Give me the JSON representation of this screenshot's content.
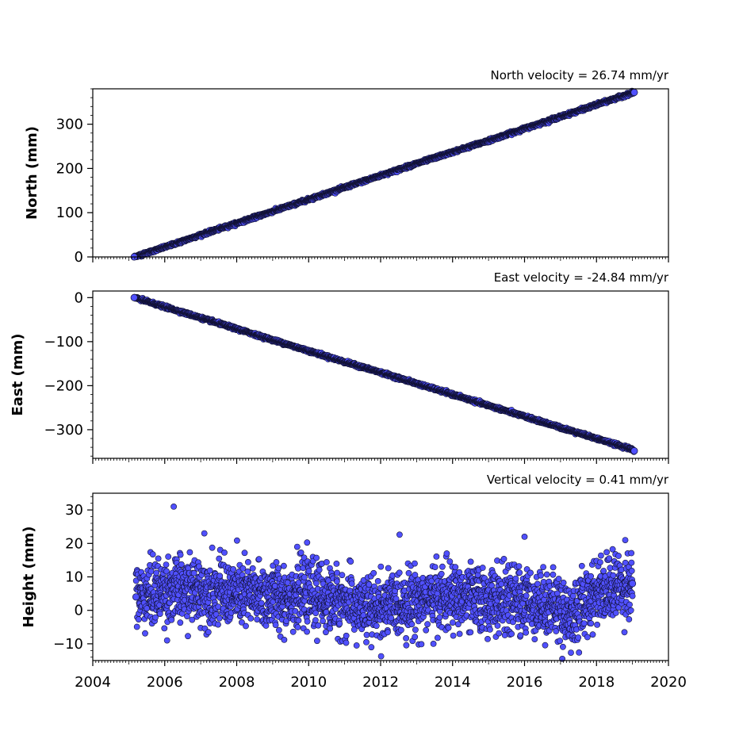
{
  "chart_data": [
    {
      "type": "scatter",
      "title": "North velocity = 26.74 mm/yr",
      "xlabel": "",
      "ylabel": "North (mm)",
      "xlim": [
        2004,
        2020
      ],
      "ylim": [
        0,
        380
      ],
      "yticks": [
        0,
        100,
        200,
        300
      ],
      "ytick_labels": [
        "0",
        "100",
        "200",
        "300"
      ],
      "xtick_labels_shown": false,
      "marker_color": "#5050ff",
      "marker_edge": "#111133",
      "series": [
        {
          "points_summary": "≈5000 daily positions from 2005.15 to 2019.05 on a linear trend, scatter about ±2 mm",
          "x": [
            2005.15,
            2006,
            2007,
            2008,
            2009,
            2010,
            2011,
            2012,
            2013,
            2014,
            2015,
            2016,
            2017,
            2018,
            2019,
            2019.05
          ],
          "values": [
            0,
            22,
            50,
            76,
            103,
            130,
            157,
            184,
            211,
            237,
            263,
            290,
            317,
            344,
            371,
            372
          ]
        }
      ]
    },
    {
      "type": "scatter",
      "title": "East velocity = -24.84 mm/yr",
      "xlabel": "",
      "ylabel": "East (mm)",
      "xlim": [
        2004,
        2020
      ],
      "ylim": [
        -365,
        15
      ],
      "yticks": [
        0,
        -100,
        -200,
        -300
      ],
      "ytick_labels": [
        "0",
        "−100",
        "−200",
        "−300"
      ],
      "xtick_labels_shown": false,
      "marker_color": "#5050ff",
      "marker_edge": "#111133",
      "series": [
        {
          "points_summary": "≈5000 daily positions from 2005.15 to 2019.05 on a linear trend, scatter about ±2 mm",
          "x": [
            2005.15,
            2006,
            2007,
            2008,
            2009,
            2010,
            2011,
            2012,
            2013,
            2014,
            2015,
            2016,
            2017,
            2018,
            2019,
            2019.05
          ],
          "values": [
            0,
            -21,
            -46,
            -71,
            -96,
            -121,
            -146,
            -170,
            -195,
            -220,
            -245,
            -270,
            -295,
            -320,
            -345,
            -348
          ]
        }
      ]
    },
    {
      "type": "scatter",
      "title": "Vertical velocity = 0.41 mm/yr",
      "xlabel": "",
      "ylabel": "Height (mm)",
      "xlim": [
        2004,
        2020
      ],
      "ylim": [
        -15,
        35
      ],
      "yticks": [
        -10,
        0,
        10,
        20,
        30
      ],
      "ytick_labels": [
        "−10",
        "0",
        "10",
        "20",
        "30"
      ],
      "xticks": [
        2004,
        2006,
        2008,
        2010,
        2012,
        2014,
        2016,
        2018,
        2020
      ],
      "xtick_labels": [
        "2004",
        "2006",
        "2008",
        "2010",
        "2012",
        "2014",
        "2016",
        "2018",
        "2020"
      ],
      "marker_color": "#5050ff",
      "marker_edge": "#111133",
      "series": [
        {
          "points_summary": "≈5000 daily heights from 2005.15 to 2019.05; mean near 5 mm, dip to ~0 mm around 2011–2012, spread about ±5 mm",
          "x": [
            2005.2,
            2006,
            2007,
            2008,
            2009,
            2010,
            2011,
            2011.7,
            2012.5,
            2013,
            2014,
            2015,
            2016,
            2017,
            2017.3,
            2018,
            2019
          ],
          "values": [
            4,
            6,
            6,
            5,
            4,
            5,
            2,
            0,
            2,
            3,
            4,
            3,
            3,
            1,
            -2,
            6,
            8
          ],
          "outliers": [
            {
              "x": 2006.25,
              "y": 31
            },
            {
              "x": 2007.1,
              "y": 23
            },
            {
              "x": 2016.0,
              "y": 22
            },
            {
              "x": 2017.05,
              "y": -14.5
            },
            {
              "x": 2018.8,
              "y": 21
            }
          ]
        }
      ]
    }
  ]
}
